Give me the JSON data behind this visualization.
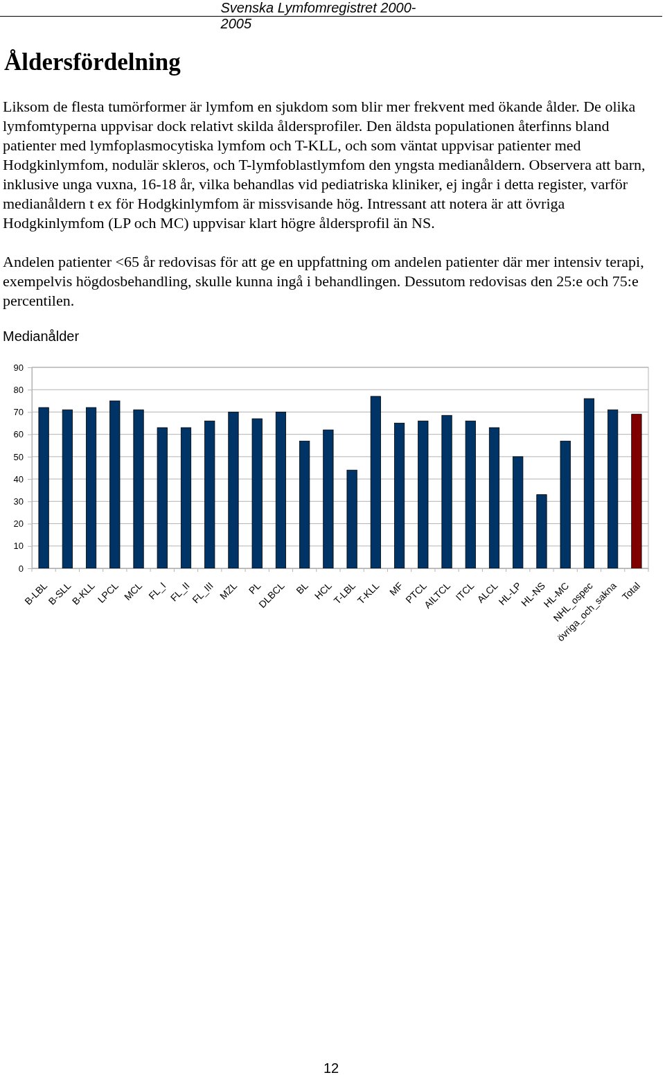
{
  "chart_data": {
    "type": "bar",
    "title": "Medianålder",
    "annotations": [
      "Svenska Lymfomregistret 2000-2005",
      "Åldersfördelning",
      "Liksom de flesta tumörformer är lymfom en sjukdom som blir mer frekvent med ökande ålder. De olika lymfomtyperna uppvisar dock relativt skilda åldersprofiler. Den äldsta populationen återfinns bland patienter med lymfoplasmocytiska lymfom och T-KLL, och som väntat uppvisar patienter med Hodgkinlymfom, nodulär skleros, och T-lymfoblastlymfom den yngsta medianåldern. Observera att barn, inklusive unga vuxna, 16-18 år, vilka behandlas vid pediatriska kliniker, ej ingår i detta register, varför medianåldern t ex för Hodgkinlymfom är missvisande hög. Intressant att notera är att övriga Hodgkinlymfom (LP och MC) uppvisar klart högre åldersprofil än NS.",
      "Andelen patienter <65 år redovisas för att ge en uppfattning om andelen patienter där mer intensiv terapi, exempelvis högdosbehandling, skulle kunna ingå i behandlingen. Dessutom redovisas den 25:e och 75:e percentilen.",
      "12"
    ],
    "categories": [
      "B-LBL",
      "B-SLL",
      "B-KLL",
      "LPCL",
      "MCL",
      "FL_I",
      "FL_II",
      "FL_III",
      "MZL",
      "PL",
      "DLBCL",
      "BL",
      "HCL",
      "T-LBL",
      "T-KLL",
      "MF",
      "PTCL",
      "AILTCL",
      "ITCL",
      "ALCL",
      "HL-LP",
      "HL-NS",
      "HL-MC",
      "NHL_ospec",
      "övriga_och_sakna",
      "Total"
    ],
    "values": [
      72,
      71,
      72,
      75,
      71,
      63,
      63,
      66,
      70,
      67,
      70,
      57,
      62,
      44,
      77,
      65,
      66,
      68.5,
      66,
      63,
      50,
      33,
      57,
      76,
      71,
      69
    ],
    "colors": [
      "#003366",
      "#003366",
      "#003366",
      "#003366",
      "#003366",
      "#003366",
      "#003366",
      "#003366",
      "#003366",
      "#003366",
      "#003366",
      "#003366",
      "#003366",
      "#003366",
      "#003366",
      "#003366",
      "#003366",
      "#003366",
      "#003366",
      "#003366",
      "#003366",
      "#003366",
      "#003366",
      "#003366",
      "#003366",
      "#800000"
    ],
    "ylim": [
      0,
      90
    ],
    "yticks": [
      0,
      10,
      20,
      30,
      40,
      50,
      60,
      70,
      80,
      90
    ],
    "grid": "y"
  }
}
